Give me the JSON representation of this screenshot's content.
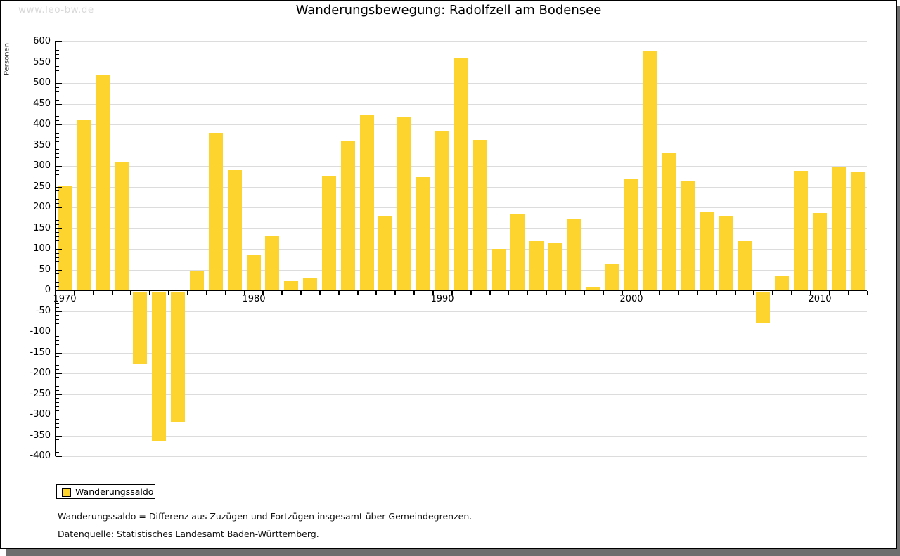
{
  "watermark": "www.leo-bw.de",
  "title": "Wanderungsbewegung: Radolfzell am Bodensee",
  "y_axis_title": "Personen",
  "legend": {
    "label": "Wanderungssaldo"
  },
  "footnotes": {
    "definition": "Wanderungssaldo = Differenz aus Zuzügen und Fortzügen insgesamt über Gemeindegrenzen.",
    "source": "Datenquelle: Statistisches Landesamt Baden-Württemberg."
  },
  "colors": {
    "bar": "#fcd42d",
    "gridline": "#dcdcdc",
    "axis": "#000000",
    "watermark": "#d9d9d9",
    "shadow": "#6e6e6e"
  },
  "chart_data": {
    "type": "bar",
    "title": "Wanderungsbewegung: Radolfzell am Bodensee",
    "xlabel": "",
    "ylabel": "Personen",
    "ylim": [
      -400,
      600
    ],
    "ytick_step": 50,
    "grid": "horizontal",
    "legend_position": "bottom-left",
    "y_ticks": [
      600,
      550,
      500,
      450,
      400,
      350,
      300,
      250,
      200,
      150,
      100,
      50,
      0,
      -50,
      -100,
      -150,
      -200,
      -250,
      -300,
      -350,
      -400
    ],
    "x_tick_labels": [
      "1970",
      "1980",
      "1990",
      "2000",
      "2010"
    ],
    "x_tick_years": [
      1970,
      1980,
      1990,
      2000,
      2010
    ],
    "categories": [
      1970,
      1971,
      1972,
      1973,
      1974,
      1975,
      1976,
      1977,
      1978,
      1979,
      1980,
      1981,
      1982,
      1983,
      1984,
      1985,
      1986,
      1987,
      1988,
      1989,
      1990,
      1991,
      1992,
      1993,
      1994,
      1995,
      1996,
      1997,
      1998,
      1999,
      2000,
      2001,
      2002,
      2003,
      2004,
      2005,
      2006,
      2007,
      2008,
      2009,
      2010,
      2011,
      2012
    ],
    "series": [
      {
        "name": "Wanderungssaldo",
        "values": [
          250,
          410,
          520,
          310,
          -175,
          -360,
          -315,
          45,
          380,
          290,
          85,
          130,
          22,
          30,
          275,
          360,
          422,
          180,
          419,
          273,
          385,
          560,
          363,
          100,
          183,
          118,
          114,
          173,
          8,
          65,
          270,
          578,
          330,
          265,
          190,
          178,
          118,
          -75,
          35,
          288,
          186,
          297,
          285
        ]
      }
    ]
  }
}
